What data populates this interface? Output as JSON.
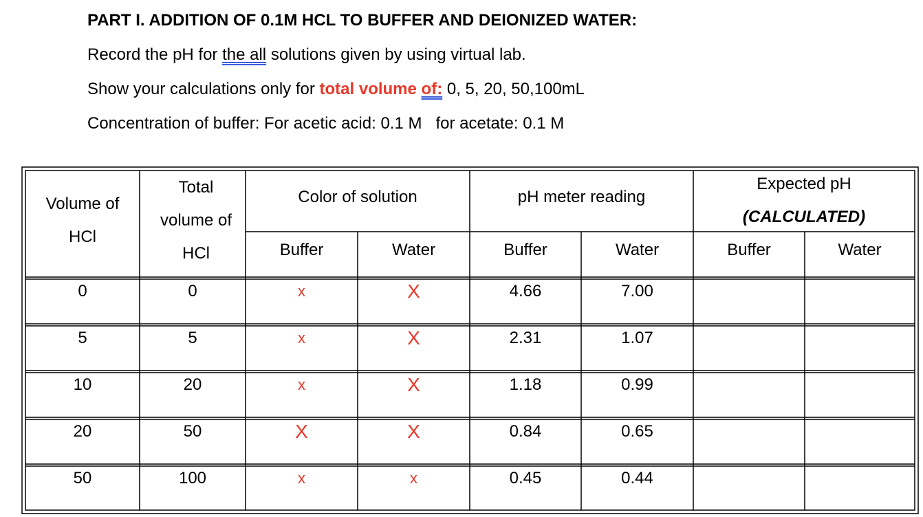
{
  "header": {
    "title": "PART I. ADDITION OF 0.1M HCL TO BUFFER AND DEIONIZED WATER:",
    "line1": {
      "before": "Record the pH for",
      "underlined": "the all",
      "after": "solutions given by using virtual lab."
    },
    "line2": {
      "before": "Show your calculations only for",
      "highlight": "total volume",
      "underlined": "of:",
      "after": "0, 5, 20, 50,100mL"
    },
    "line3": {
      "part1": "Concentration of buffer: For acetic acid: 0.1 M",
      "part2": "for acetate: 0.1 M"
    }
  },
  "table": {
    "headers": {
      "volume_hcl": "Volume of HCl",
      "total_volume": "Total volume of HCl",
      "color": "Color of solution",
      "ph_meter": "pH meter reading",
      "expected": "Expected pH",
      "calculated": "(CALCULATED)",
      "sub": [
        "Buffer",
        "Water",
        "Buffer",
        "Water",
        "Buffer",
        "Water"
      ]
    },
    "rows": [
      [
        "0",
        "0",
        "x",
        "X",
        "4.66",
        "7.00"
      ],
      [
        "5",
        "5",
        "x",
        "X",
        "2.31",
        "1.07"
      ],
      [
        "10",
        "20",
        "x",
        "X",
        "1.18",
        "0.99"
      ],
      [
        "20",
        "50",
        "X",
        "X",
        "0.84",
        "0.65"
      ],
      [
        "50",
        "100",
        "x",
        "x",
        "0.45",
        "0.44"
      ]
    ]
  }
}
